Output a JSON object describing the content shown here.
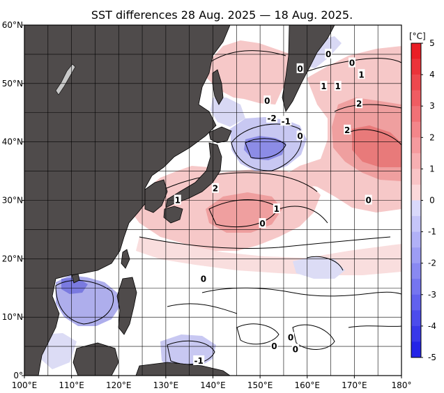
{
  "title": "SST differences 28 Aug. 2025 — 18 Aug. 2025.",
  "colorbar": {
    "unit": "[°C]",
    "ticks": [
      "5",
      "4",
      "3",
      "2",
      "1",
      "0",
      "-1",
      "-2",
      "-3",
      "-4",
      "-5"
    ],
    "warm_color": "#e8141c",
    "cold_color": "#1a1ae6"
  },
  "axes": {
    "x_ticks": [
      "100°E",
      "110°E",
      "120°E",
      "130°E",
      "140°E",
      "150°E",
      "160°E",
      "170°E",
      "180°"
    ],
    "y_ticks": [
      "60°N",
      "50°N",
      "40°N",
      "30°N",
      "20°N",
      "10°N",
      "0°"
    ]
  },
  "land_color": "#4f4b4b",
  "contour_labels": [
    {
      "text": "0",
      "lon": 158.5,
      "lat": 52.5
    },
    {
      "text": "0",
      "lon": 164.5,
      "lat": 55.0
    },
    {
      "text": "0",
      "lon": 169.5,
      "lat": 53.5
    },
    {
      "text": "0",
      "lon": 151.5,
      "lat": 47.0
    },
    {
      "text": "1",
      "lon": 163.5,
      "lat": 49.5
    },
    {
      "text": "1",
      "lon": 166.5,
      "lat": 49.5
    },
    {
      "text": "1",
      "lon": 171.5,
      "lat": 51.5
    },
    {
      "text": "2",
      "lon": 171.0,
      "lat": 46.5
    },
    {
      "text": "2",
      "lon": 168.5,
      "lat": 42.0
    },
    {
      "text": "-2",
      "lon": 152.5,
      "lat": 44.0
    },
    {
      "text": "-1",
      "lon": 155.5,
      "lat": 43.5
    },
    {
      "text": "0",
      "lon": 158.5,
      "lat": 41.0
    },
    {
      "text": "0",
      "lon": 173.0,
      "lat": 30.0
    },
    {
      "text": "2",
      "lon": 140.5,
      "lat": 32.0
    },
    {
      "text": "1",
      "lon": 132.5,
      "lat": 30.0
    },
    {
      "text": "1",
      "lon": 153.5,
      "lat": 28.5
    },
    {
      "text": "0",
      "lon": 150.5,
      "lat": 26.0
    },
    {
      "text": "0",
      "lon": 138.0,
      "lat": 16.5
    },
    {
      "text": "0",
      "lon": 156.5,
      "lat": 6.5
    },
    {
      "text": "0",
      "lon": 153.0,
      "lat": 5.0
    },
    {
      "text": "0",
      "lon": 157.5,
      "lat": 4.5
    },
    {
      "text": "-1",
      "lon": 137.0,
      "lat": 2.5
    }
  ]
}
